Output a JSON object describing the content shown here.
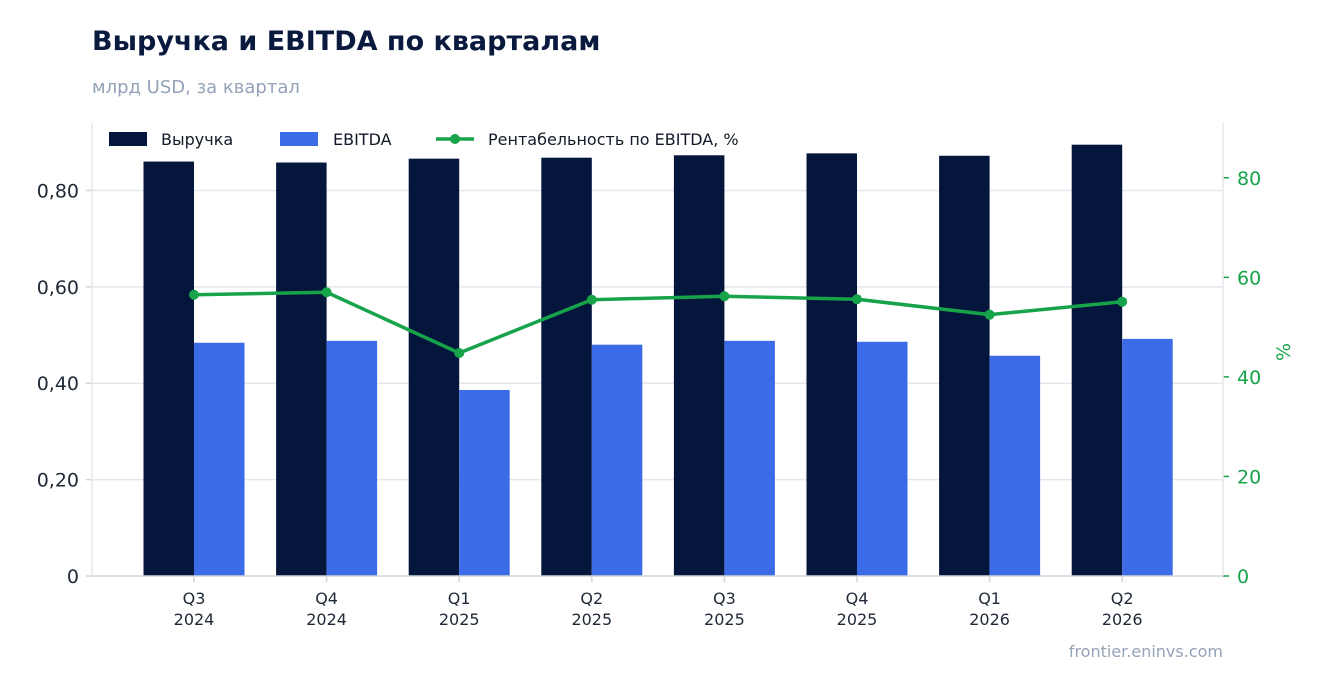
{
  "header": {
    "title": "Выручка и EBITDA по кварталам",
    "subtitle": "млрд USD, за квартал"
  },
  "footer": {
    "source": "frontier.eninvs.com"
  },
  "colors": {
    "revenue": "#05163d",
    "ebitda": "#3b6be6",
    "margin": "#16a34a",
    "grid": "#e5e7ef"
  },
  "chart_data": {
    "type": "bar",
    "categories": [
      [
        "Q3",
        "2024"
      ],
      [
        "Q4",
        "2024"
      ],
      [
        "Q1",
        "2025"
      ],
      [
        "Q2",
        "2025"
      ],
      [
        "Q3",
        "2025"
      ],
      [
        "Q4",
        "2025"
      ],
      [
        "Q1",
        "2026"
      ],
      [
        "Q2",
        "2026"
      ]
    ],
    "series": [
      {
        "name": "Выручка",
        "type": "bar",
        "axis": "left",
        "values": [
          0.86,
          0.858,
          0.866,
          0.868,
          0.873,
          0.877,
          0.872,
          0.895
        ]
      },
      {
        "name": "EBITDA",
        "type": "bar",
        "axis": "left",
        "values": [
          0.484,
          0.488,
          0.386,
          0.48,
          0.488,
          0.486,
          0.457,
          0.492
        ]
      },
      {
        "name": "Рентабельность по EBITDA, %",
        "type": "line",
        "axis": "right",
        "values": [
          56.5,
          57.0,
          44.8,
          55.5,
          56.2,
          55.6,
          52.5,
          55.1
        ]
      }
    ],
    "y_left": {
      "ticks": [
        0,
        0.2,
        0.4,
        0.6,
        0.8
      ],
      "tick_labels": [
        "0",
        "0,20",
        "0,40",
        "0,60",
        "0,80"
      ],
      "ylim": [
        0,
        0.94
      ]
    },
    "y_right": {
      "label": "%",
      "ticks": [
        0,
        20,
        40,
        60,
        80
      ],
      "tick_labels": [
        "0",
        "20",
        "40",
        "60",
        "80"
      ],
      "ylim": [
        0,
        91
      ]
    },
    "grid": true,
    "legend_position": "top-left"
  }
}
